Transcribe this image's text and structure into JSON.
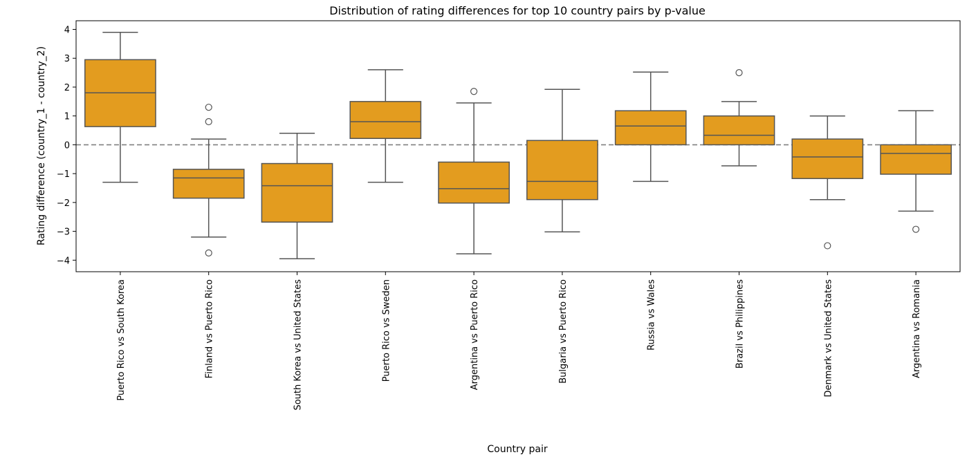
{
  "chart_data": {
    "type": "box",
    "title": "Distribution of rating differences for top 10 country pairs by p-value",
    "xlabel": "Country pair",
    "ylabel": "Rating difference (country_1 - country_2)",
    "ylim": [
      -4.4,
      4.3
    ],
    "yticks": [
      -4,
      -3,
      -2,
      -1,
      0,
      1,
      2,
      3,
      4
    ],
    "grid": false,
    "reference_line": {
      "y": 0,
      "style": "dashed"
    },
    "box_color": "#e39c1f",
    "line_color": "#555555",
    "categories": [
      "Puerto Rico vs South Korea",
      "Finland vs Puerto Rico",
      "South Korea vs United States",
      "Puerto Rico vs Sweden",
      "Argentina vs Puerto Rico",
      "Bulgaria vs Puerto Rico",
      "Russia vs Wales",
      "Brazil vs Philippines",
      "Denmark vs United States",
      "Argentina vs Romania"
    ],
    "boxes": [
      {
        "whisker_low": -1.3,
        "q1": 0.63,
        "median": 1.8,
        "q3": 2.95,
        "whisker_high": 3.9,
        "outliers": []
      },
      {
        "whisker_low": -3.2,
        "q1": -1.85,
        "median": -1.15,
        "q3": -0.85,
        "whisker_high": 0.2,
        "outliers": [
          1.3,
          0.8,
          -3.75
        ]
      },
      {
        "whisker_low": -3.95,
        "q1": -2.68,
        "median": -1.42,
        "q3": -0.65,
        "whisker_high": 0.4,
        "outliers": []
      },
      {
        "whisker_low": -1.3,
        "q1": 0.22,
        "median": 0.8,
        "q3": 1.5,
        "whisker_high": 2.6,
        "outliers": []
      },
      {
        "whisker_low": -3.78,
        "q1": -2.02,
        "median": -1.52,
        "q3": -0.6,
        "whisker_high": 1.45,
        "outliers": [
          1.85
        ]
      },
      {
        "whisker_low": -3.02,
        "q1": -1.9,
        "median": -1.27,
        "q3": 0.15,
        "whisker_high": 1.92,
        "outliers": []
      },
      {
        "whisker_low": -1.27,
        "q1": 0.0,
        "median": 0.65,
        "q3": 1.18,
        "whisker_high": 2.52,
        "outliers": []
      },
      {
        "whisker_low": -0.73,
        "q1": 0.0,
        "median": 0.33,
        "q3": 1.0,
        "whisker_high": 1.5,
        "outliers": [
          2.5
        ]
      },
      {
        "whisker_low": -1.9,
        "q1": -1.17,
        "median": -0.42,
        "q3": 0.2,
        "whisker_high": 1.0,
        "outliers": [
          -3.5
        ]
      },
      {
        "whisker_low": -2.3,
        "q1": -1.02,
        "median": -0.3,
        "q3": 0.0,
        "whisker_high": 1.18,
        "outliers": [
          -2.93
        ]
      }
    ]
  }
}
